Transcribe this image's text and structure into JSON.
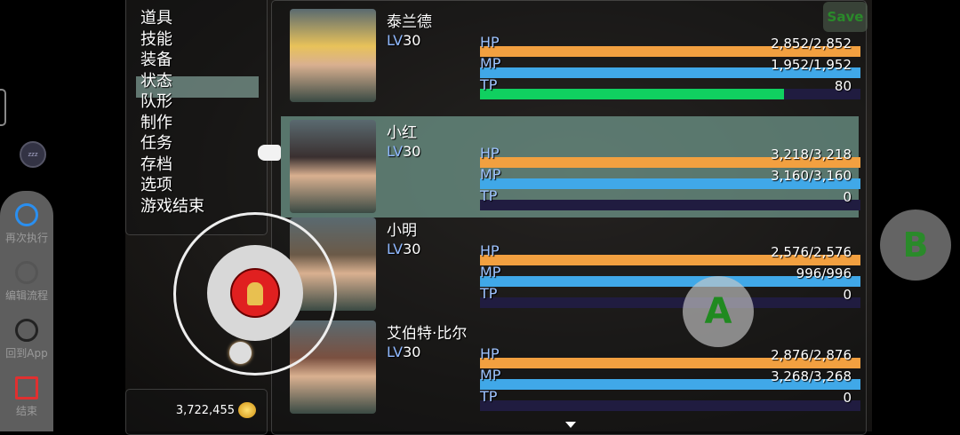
{
  "menu": {
    "items": [
      "道具",
      "技能",
      "装备",
      "状态",
      "队形",
      "制作",
      "任务",
      "存档",
      "选项",
      "游戏结束"
    ],
    "selected_index": 3
  },
  "gold": {
    "amount": "3,722,455",
    "icon": "gold-coins-icon"
  },
  "save_button": {
    "label": "Save"
  },
  "buttons": {
    "a": "A",
    "b": "B"
  },
  "actors": [
    {
      "name": "泰兰德",
      "lv_label": "LV",
      "level": "30",
      "hp": "2,852/2,852",
      "hp_pct": 100,
      "mp": "1,952/1,952",
      "mp_pct": 100,
      "tp": "80",
      "tp_pct": 80,
      "face": "#e8c25a"
    },
    {
      "name": "小红",
      "lv_label": "LV",
      "level": "30",
      "hp": "3,218/3,218",
      "hp_pct": 100,
      "mp": "3,160/3,160",
      "mp_pct": 100,
      "tp": "0",
      "tp_pct": 0,
      "face": "#3a3030",
      "selected": true
    },
    {
      "name": "小明",
      "lv_label": "LV",
      "level": "30",
      "hp": "2,576/2,576",
      "hp_pct": 100,
      "mp": "996/996",
      "mp_pct": 100,
      "tp": "0",
      "tp_pct": 0,
      "face": "#6b5a48"
    },
    {
      "name": "艾伯特·比尔",
      "lv_label": "LV",
      "level": "30",
      "hp": "2,876/2,876",
      "hp_pct": 100,
      "mp": "3,268/3,268",
      "mp_pct": 100,
      "tp": "0",
      "tp_pct": 0,
      "face": "#7a5040"
    }
  ],
  "bar_labels": {
    "hp": "HP",
    "mp": "MP",
    "tp": "TP"
  },
  "colors": {
    "hp": "#f2a040",
    "mp": "#40a8e8",
    "tp": "#10d060",
    "selection": "#82b4a5"
  },
  "side_toolbar": [
    {
      "label": "再次执行",
      "icon": "replay-icon",
      "color": "#2a8ff0"
    },
    {
      "label": "编辑流程",
      "icon": "edit-icon",
      "color": "#555"
    },
    {
      "label": "回到App",
      "icon": "app-icon",
      "color": "#222"
    },
    {
      "label": "结束",
      "icon": "exit-icon",
      "color": "#e03030"
    }
  ]
}
